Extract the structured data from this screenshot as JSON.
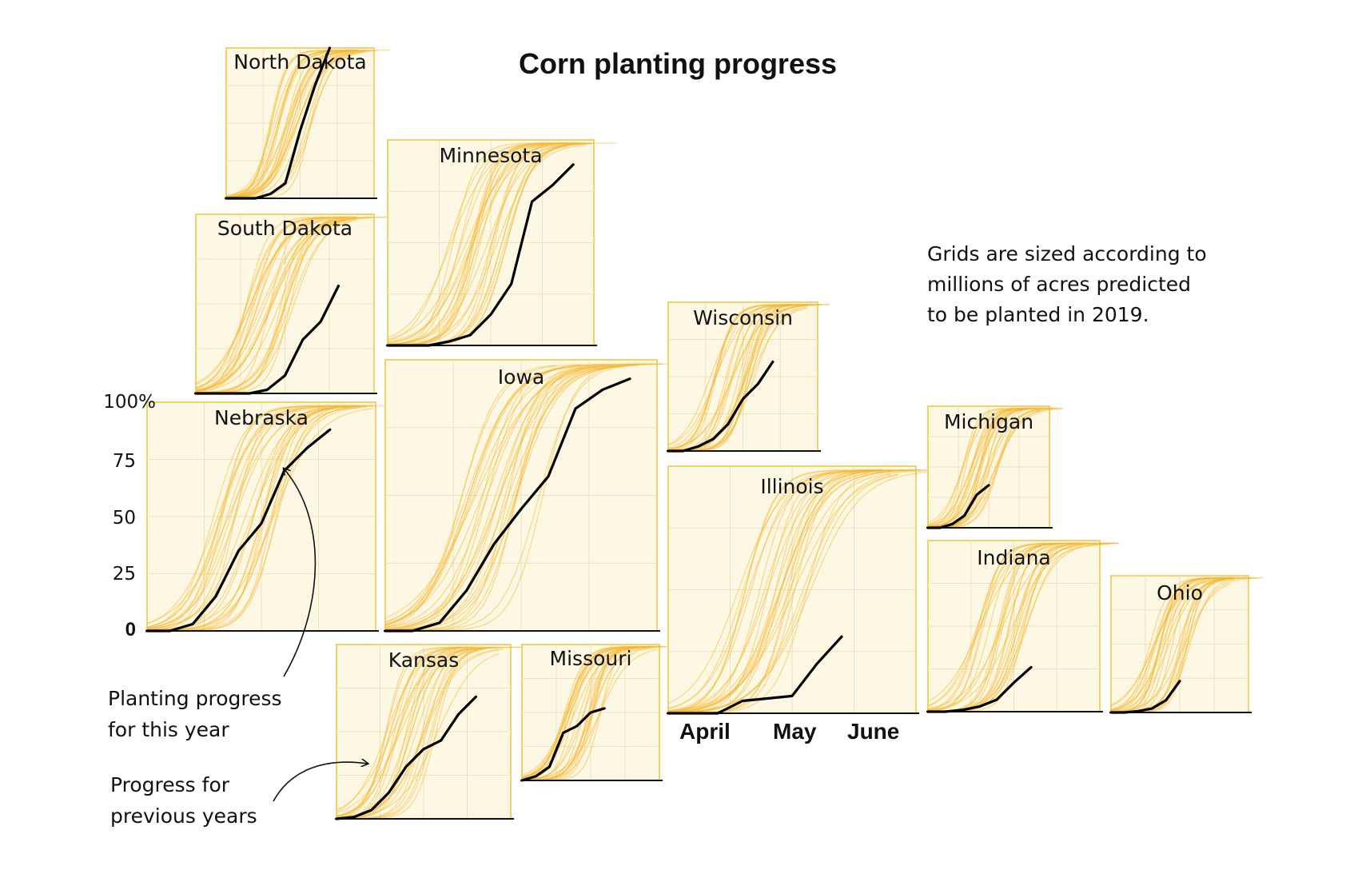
{
  "chart_data": {
    "type": "line",
    "title": "Corn planting progress",
    "note_lines": [
      "Grids are sized according to",
      "millions of acres predicted",
      "to be planted in 2019."
    ],
    "y_axis": {
      "ticks": [
        "100%",
        "75",
        "50",
        "25",
        "0"
      ],
      "ylim": [
        0,
        100
      ]
    },
    "x_axis": {
      "ticks": [
        "April",
        "May",
        "June"
      ]
    },
    "annotations": [
      "Planting progress for this year",
      "Progress for previous years"
    ],
    "annotation_lines": {
      "this_year": [
        "Planting progress",
        "for this year"
      ],
      "previous": [
        "Progress for",
        "previous years"
      ]
    },
    "colors": {
      "panel_fill": "#fdf8e4",
      "panel_border": "#f1d26b",
      "previous_years": "#f5b52e",
      "this_year": "#000000"
    },
    "series_legend": {
      "this_year": "Planting progress for this year",
      "previous_years": "Progress for previous years"
    },
    "states": [
      {
        "name": "North Dakota",
        "this_year": [
          [
            0,
            0
          ],
          [
            0.1,
            0
          ],
          [
            0.2,
            0
          ],
          [
            0.3,
            3
          ],
          [
            0.4,
            10
          ],
          [
            0.5,
            45
          ],
          [
            0.6,
            75
          ],
          [
            0.7,
            100
          ]
        ]
      },
      {
        "name": "South Dakota",
        "this_year": [
          [
            0,
            0
          ],
          [
            0.2,
            0
          ],
          [
            0.3,
            0
          ],
          [
            0.4,
            2
          ],
          [
            0.5,
            10
          ],
          [
            0.6,
            30
          ],
          [
            0.7,
            40
          ],
          [
            0.8,
            60
          ]
        ]
      },
      {
        "name": "Minnesota",
        "this_year": [
          [
            0,
            0
          ],
          [
            0.2,
            0
          ],
          [
            0.3,
            2
          ],
          [
            0.4,
            5
          ],
          [
            0.5,
            15
          ],
          [
            0.6,
            30
          ],
          [
            0.7,
            70
          ],
          [
            0.8,
            78
          ],
          [
            0.9,
            88
          ]
        ]
      },
      {
        "name": "Nebraska",
        "this_year": [
          [
            0,
            0
          ],
          [
            0.1,
            0
          ],
          [
            0.2,
            3
          ],
          [
            0.3,
            15
          ],
          [
            0.4,
            35
          ],
          [
            0.5,
            47
          ],
          [
            0.6,
            70
          ],
          [
            0.7,
            80
          ],
          [
            0.8,
            88
          ]
        ]
      },
      {
        "name": "Iowa",
        "this_year": [
          [
            0,
            0
          ],
          [
            0.1,
            0
          ],
          [
            0.2,
            3
          ],
          [
            0.3,
            15
          ],
          [
            0.4,
            32
          ],
          [
            0.5,
            45
          ],
          [
            0.6,
            57
          ],
          [
            0.7,
            82
          ],
          [
            0.8,
            89
          ],
          [
            0.9,
            93
          ]
        ]
      },
      {
        "name": "Kansas",
        "this_year": [
          [
            0,
            0
          ],
          [
            0.1,
            1
          ],
          [
            0.2,
            5
          ],
          [
            0.3,
            15
          ],
          [
            0.4,
            30
          ],
          [
            0.5,
            40
          ],
          [
            0.6,
            45
          ],
          [
            0.7,
            60
          ],
          [
            0.8,
            70
          ]
        ]
      },
      {
        "name": "Missouri",
        "this_year": [
          [
            0,
            0
          ],
          [
            0.1,
            3
          ],
          [
            0.2,
            10
          ],
          [
            0.3,
            35
          ],
          [
            0.4,
            40
          ],
          [
            0.5,
            50
          ],
          [
            0.6,
            53
          ]
        ]
      },
      {
        "name": "Wisconsin",
        "this_year": [
          [
            0,
            0
          ],
          [
            0.1,
            0
          ],
          [
            0.2,
            3
          ],
          [
            0.3,
            8
          ],
          [
            0.4,
            18
          ],
          [
            0.5,
            35
          ],
          [
            0.6,
            45
          ],
          [
            0.7,
            60
          ]
        ]
      },
      {
        "name": "Illinois",
        "this_year": [
          [
            0,
            0
          ],
          [
            0.1,
            0
          ],
          [
            0.2,
            0
          ],
          [
            0.3,
            5
          ],
          [
            0.4,
            6
          ],
          [
            0.5,
            7
          ],
          [
            0.6,
            20
          ],
          [
            0.7,
            31
          ]
        ]
      },
      {
        "name": "Michigan",
        "this_year": [
          [
            0,
            0
          ],
          [
            0.1,
            0
          ],
          [
            0.2,
            3
          ],
          [
            0.3,
            10
          ],
          [
            0.4,
            27
          ],
          [
            0.5,
            35
          ]
        ]
      },
      {
        "name": "Indiana",
        "this_year": [
          [
            0,
            0
          ],
          [
            0.1,
            0
          ],
          [
            0.2,
            1
          ],
          [
            0.3,
            3
          ],
          [
            0.4,
            7
          ],
          [
            0.5,
            17
          ],
          [
            0.6,
            26
          ]
        ]
      },
      {
        "name": "Ohio",
        "this_year": [
          [
            0,
            0
          ],
          [
            0.1,
            0
          ],
          [
            0.2,
            1
          ],
          [
            0.3,
            3
          ],
          [
            0.4,
            9
          ],
          [
            0.5,
            23
          ]
        ]
      }
    ]
  }
}
